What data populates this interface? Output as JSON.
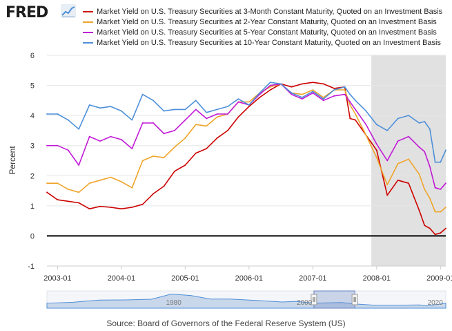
{
  "header": {
    "logo_text": "FRED",
    "logo_icon": "line-chart-icon"
  },
  "colors": {
    "series_3m": "#cc0000",
    "series_2y": "#f0a429",
    "series_5y": "#c118d7",
    "series_10y": "#4d8fd9",
    "recession_shade": "#e1e1e1",
    "zero_line": "#000000",
    "grid": "#e6e6e6"
  },
  "chart_data": {
    "type": "line",
    "title": "",
    "xlabel": "",
    "ylabel": "Percent",
    "ylim": [
      -1,
      6
    ],
    "yticks": [
      "-1",
      "0",
      "1",
      "2",
      "3",
      "4",
      "5",
      "6"
    ],
    "xlim": [
      "2002-11",
      "2009-02"
    ],
    "xticks": [
      "2003-01",
      "2004-01",
      "2005-01",
      "2006-01",
      "2007-01",
      "2008-01",
      "2009-01"
    ],
    "grid": true,
    "legend_position": "top",
    "reference_line": 0,
    "recession_shading": [
      {
        "start": "2007-12",
        "end": "2009-02"
      }
    ],
    "x": [
      "2002-11",
      "2003-01",
      "2003-03",
      "2003-05",
      "2003-07",
      "2003-09",
      "2003-11",
      "2004-01",
      "2004-03",
      "2004-05",
      "2004-07",
      "2004-09",
      "2004-11",
      "2005-01",
      "2005-03",
      "2005-05",
      "2005-07",
      "2005-09",
      "2005-11",
      "2006-01",
      "2006-03",
      "2006-05",
      "2006-07",
      "2006-09",
      "2006-11",
      "2007-01",
      "2007-03",
      "2007-05",
      "2007-07",
      "2007-08",
      "2007-09",
      "2007-11",
      "2008-01",
      "2008-03",
      "2008-05",
      "2008-07",
      "2008-09",
      "2008-10",
      "2008-11",
      "2008-12",
      "2009-01",
      "2009-02"
    ],
    "series": [
      {
        "name": "Market Yield on U.S. Treasury Securities at 3-Month Constant Maturity, Quoted on an Investment Basis",
        "color_key": "series_3m",
        "values": [
          1.45,
          1.2,
          1.15,
          1.1,
          0.9,
          0.98,
          0.95,
          0.9,
          0.95,
          1.05,
          1.4,
          1.65,
          2.15,
          2.35,
          2.75,
          2.9,
          3.25,
          3.5,
          3.95,
          4.3,
          4.6,
          4.85,
          5.05,
          4.95,
          5.05,
          5.1,
          5.05,
          4.9,
          4.95,
          3.9,
          3.85,
          3.35,
          2.85,
          1.35,
          1.85,
          1.75,
          0.85,
          0.35,
          0.25,
          0.05,
          0.1,
          0.25
        ]
      },
      {
        "name": "Market Yield on U.S. Treasury Securities at 2-Year Constant Maturity, Quoted on an Investment Basis",
        "color_key": "series_2y",
        "values": [
          1.75,
          1.75,
          1.55,
          1.45,
          1.75,
          1.85,
          1.95,
          1.8,
          1.6,
          2.5,
          2.65,
          2.6,
          2.95,
          3.25,
          3.7,
          3.65,
          3.95,
          4.05,
          4.45,
          4.45,
          4.75,
          4.95,
          5.05,
          4.75,
          4.7,
          4.85,
          4.6,
          4.85,
          4.85,
          4.35,
          4.05,
          3.35,
          2.6,
          1.7,
          2.4,
          2.55,
          2.05,
          1.55,
          1.25,
          0.8,
          0.8,
          0.95
        ]
      },
      {
        "name": "Market Yield on U.S. Treasury Securities at 5-Year Constant Maturity, Quoted on an Investment Basis",
        "color_key": "series_5y",
        "values": [
          3.0,
          3.0,
          2.85,
          2.35,
          3.3,
          3.15,
          3.3,
          3.2,
          2.9,
          3.75,
          3.75,
          3.4,
          3.5,
          3.85,
          4.2,
          3.9,
          4.05,
          4.05,
          4.45,
          4.35,
          4.7,
          5.0,
          5.05,
          4.7,
          4.55,
          4.75,
          4.5,
          4.65,
          4.7,
          4.45,
          4.2,
          3.7,
          3.05,
          2.5,
          3.15,
          3.3,
          2.95,
          2.8,
          2.3,
          1.6,
          1.55,
          1.75
        ]
      },
      {
        "name": "Market Yield on U.S. Treasury Securities at 10-Year Constant Maturity, Quoted on an Investment Basis",
        "color_key": "series_10y",
        "values": [
          4.05,
          4.05,
          3.85,
          3.55,
          4.35,
          4.25,
          4.3,
          4.15,
          3.85,
          4.7,
          4.5,
          4.15,
          4.2,
          4.2,
          4.5,
          4.1,
          4.2,
          4.3,
          4.55,
          4.35,
          4.75,
          5.1,
          5.05,
          4.75,
          4.6,
          4.8,
          4.55,
          4.85,
          4.95,
          4.7,
          4.5,
          4.15,
          3.7,
          3.5,
          3.9,
          4.0,
          3.75,
          3.8,
          3.55,
          2.45,
          2.45,
          2.85
        ]
      }
    ]
  },
  "navigator": {
    "labels": [
      "1980",
      "2000",
      "2020"
    ],
    "selection_start": "2002-11",
    "selection_end": "2009-02"
  },
  "footer": {
    "source": "Source: Board of Governors of the Federal Reserve System (US)"
  }
}
